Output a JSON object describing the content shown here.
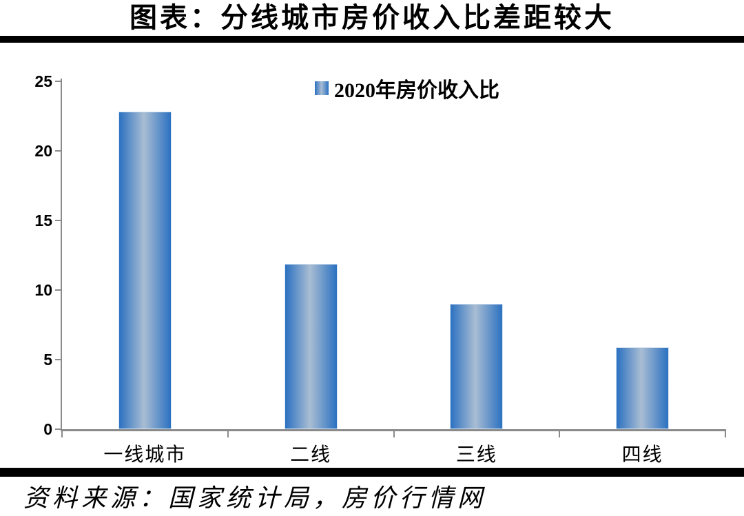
{
  "title": "图表：分线城市房价收入比差距较大",
  "legend": {
    "label": "2020年房价收入比"
  },
  "source": "资料来源：国家统计局，房价行情网",
  "colors": {
    "bar_edge": "#2b71c1",
    "bar_mid": "#a9bdd3",
    "bar_border": "#d6e4f2",
    "axis": "#8a8a8a",
    "rule": "#000000",
    "text": "#000000",
    "background": "#ffffff"
  },
  "chart_data": {
    "type": "bar",
    "categories": [
      "一线城市",
      "二线",
      "三线",
      "四线"
    ],
    "values": [
      22.8,
      11.9,
      9.0,
      5.9
    ],
    "series_name": "2020年房价收入比",
    "title": "图表：分线城市房价收入比差距较大",
    "xlabel": "",
    "ylabel": "",
    "ylim": [
      0,
      25
    ],
    "yticks": [
      0,
      5,
      10,
      15,
      20,
      25
    ],
    "grid": false,
    "legend_position": "top-center",
    "bar_fill": "horizontal gradient, dark blue edges, light blue-gray center"
  }
}
